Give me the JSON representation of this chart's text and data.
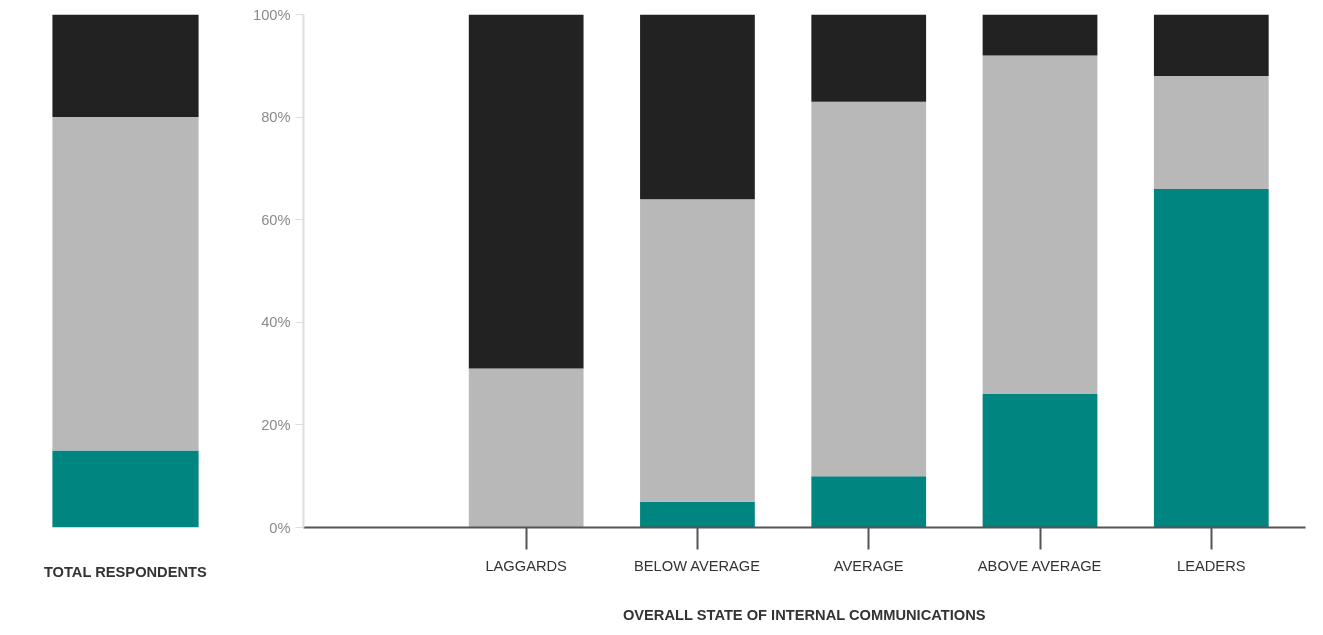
{
  "chart_data": [
    {
      "type": "bar",
      "stacked": true,
      "categories": [
        "TOTAL RESPONDENTS"
      ],
      "ylim": [
        0,
        100
      ],
      "tick_labels": "x",
      "grid": false,
      "series": [
        {
          "color": "#008580",
          "values": [
            15
          ]
        },
        {
          "color": "#b8b8b8",
          "values": [
            65
          ]
        },
        {
          "color": "#222222",
          "values": [
            20
          ]
        }
      ]
    },
    {
      "type": "bar",
      "stacked": true,
      "categories": [
        "LAGGARDS",
        "BELOW AVERAGE",
        "AVERAGE",
        "ABOVE AVERAGE",
        "LEADERS"
      ],
      "xlabel": "OVERALL STATE OF INTERNAL COMMUNICATIONS",
      "ylim": [
        0,
        100
      ],
      "yticks": [
        {
          "value": 0,
          "label": "0%"
        },
        {
          "value": 20,
          "label": "20%"
        },
        {
          "value": 40,
          "label": "40%"
        },
        {
          "value": 60,
          "label": "60%"
        },
        {
          "value": 80,
          "label": "80%"
        },
        {
          "value": 100,
          "label": "100%"
        }
      ],
      "grid": false,
      "series": [
        {
          "color": "#008580",
          "values": [
            0,
            5,
            10,
            26,
            66
          ]
        },
        {
          "color": "#b8b8b8",
          "values": [
            31,
            59,
            73,
            66,
            22
          ]
        },
        {
          "color": "#222222",
          "values": [
            69,
            36,
            17,
            8,
            12
          ]
        }
      ]
    }
  ]
}
